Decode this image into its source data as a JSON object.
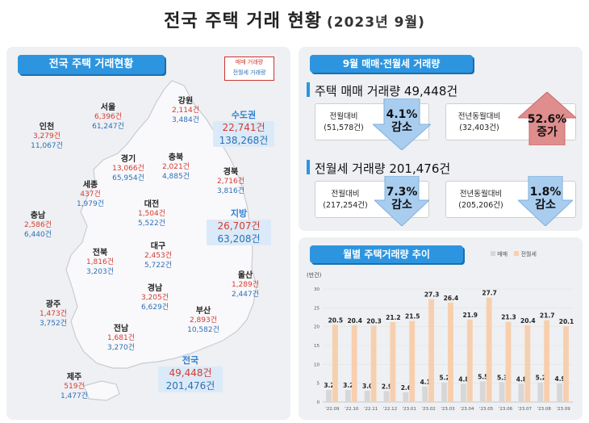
{
  "title": {
    "main": "전국 주택 거래 현황",
    "sub": "(2023년 9월)"
  },
  "map_panel": {
    "header": "전국 주택 거래현황",
    "legend": {
      "sale": "매매 거래량",
      "lease": "전월세 거래량"
    },
    "regions": {
      "seoul": {
        "name": "서울",
        "sale": "6,396건",
        "lease": "61,247건"
      },
      "incheon": {
        "name": "인천",
        "sale": "3,279건",
        "lease": "11,067건"
      },
      "gangwon": {
        "name": "강원",
        "sale": "2,114건",
        "lease": "3,484건"
      },
      "gyeonggi": {
        "name": "경기",
        "sale": "13,066건",
        "lease": "65,954건"
      },
      "sejong": {
        "name": "세종",
        "sale": "437건",
        "lease": "1,979건"
      },
      "chungbuk": {
        "name": "충북",
        "sale": "2,021건",
        "lease": "4,885건"
      },
      "gyeongbuk": {
        "name": "경북",
        "sale": "2,716건",
        "lease": "3,816건"
      },
      "chungnam": {
        "name": "충남",
        "sale": "2,586건",
        "lease": "6,440건"
      },
      "daejeon": {
        "name": "대전",
        "sale": "1,504건",
        "lease": "5,522건"
      },
      "jeonbuk": {
        "name": "전북",
        "sale": "1,816건",
        "lease": "3,203건"
      },
      "daegu": {
        "name": "대구",
        "sale": "2,453건",
        "lease": "5,722건"
      },
      "ulsan": {
        "name": "울산",
        "sale": "1,289건",
        "lease": "2,447건"
      },
      "gwangju": {
        "name": "광주",
        "sale": "1,473건",
        "lease": "3,752건"
      },
      "gyeongnam": {
        "name": "경남",
        "sale": "3,205건",
        "lease": "6,629건"
      },
      "busan": {
        "name": "부산",
        "sale": "2,893건",
        "lease": "10,582건"
      },
      "jeonnam": {
        "name": "전남",
        "sale": "1,681건",
        "lease": "3,270건"
      },
      "jeju": {
        "name": "제주",
        "sale": "519건",
        "lease": "1,477건"
      }
    },
    "capital": {
      "name": "수도권",
      "sale": "22,741건",
      "lease": "138,268건"
    },
    "provinces": {
      "name": "지방",
      "sale": "26,707건",
      "lease": "63,208건"
    },
    "nation": {
      "name": "전국",
      "sale": "49,448건",
      "lease": "201,476건"
    }
  },
  "volume_panel": {
    "header": "9월 매매·전월세 거래량",
    "sale": {
      "title": "주택 매매 거래량 49,448건",
      "mom": {
        "label": "전월대비",
        "base": "(51,578건)",
        "pct": "4.1%",
        "dir": "감소"
      },
      "yoy": {
        "label": "전년동월대비",
        "base": "(32,403건)",
        "pct": "52.6%",
        "dir": "증가"
      }
    },
    "lease": {
      "title": "전월세 거래량 201,476건",
      "mom": {
        "label": "전월대비",
        "base": "(217,254건)",
        "pct": "7.3%",
        "dir": "감소"
      },
      "yoy": {
        "label": "전년동월대비",
        "base": "(205,206건)",
        "pct": "1.8%",
        "dir": "감소"
      }
    }
  },
  "trend_panel": {
    "header": "월별 주택거래량 추이",
    "legend": {
      "sale": "매매",
      "lease": "전월세"
    },
    "unit": "(만건)"
  },
  "colors": {
    "sale": "#d7d7d7",
    "lease": "#f8cfae",
    "accent": "#2d95e0",
    "up": "#e08d8d",
    "down": "#a9cdef"
  },
  "chart_data": {
    "type": "bar",
    "categories": [
      "'22.09",
      "'22.10",
      "'22.11",
      "'22.12",
      "'23.01",
      "'23.02",
      "'23.03",
      "'23.04",
      "'23.05",
      "'23.06",
      "'23.07",
      "'23.08",
      "'23.09"
    ],
    "series": [
      {
        "name": "매매",
        "values": [
          3.2,
          3.2,
          3.0,
          2.9,
          2.6,
          4.1,
          5.2,
          4.8,
          5.5,
          5.3,
          4.8,
          5.2,
          4.9
        ]
      },
      {
        "name": "전월세",
        "values": [
          20.5,
          20.4,
          20.3,
          21.2,
          21.5,
          27.3,
          26.4,
          21.9,
          27.7,
          21.3,
          20.4,
          21.7,
          20.1
        ]
      }
    ],
    "ylabel": "(만건)",
    "ylim": [
      0,
      30
    ],
    "yticks": [
      0,
      5,
      10,
      15,
      20,
      25,
      30
    ],
    "grid": true,
    "legend": "top-right"
  }
}
